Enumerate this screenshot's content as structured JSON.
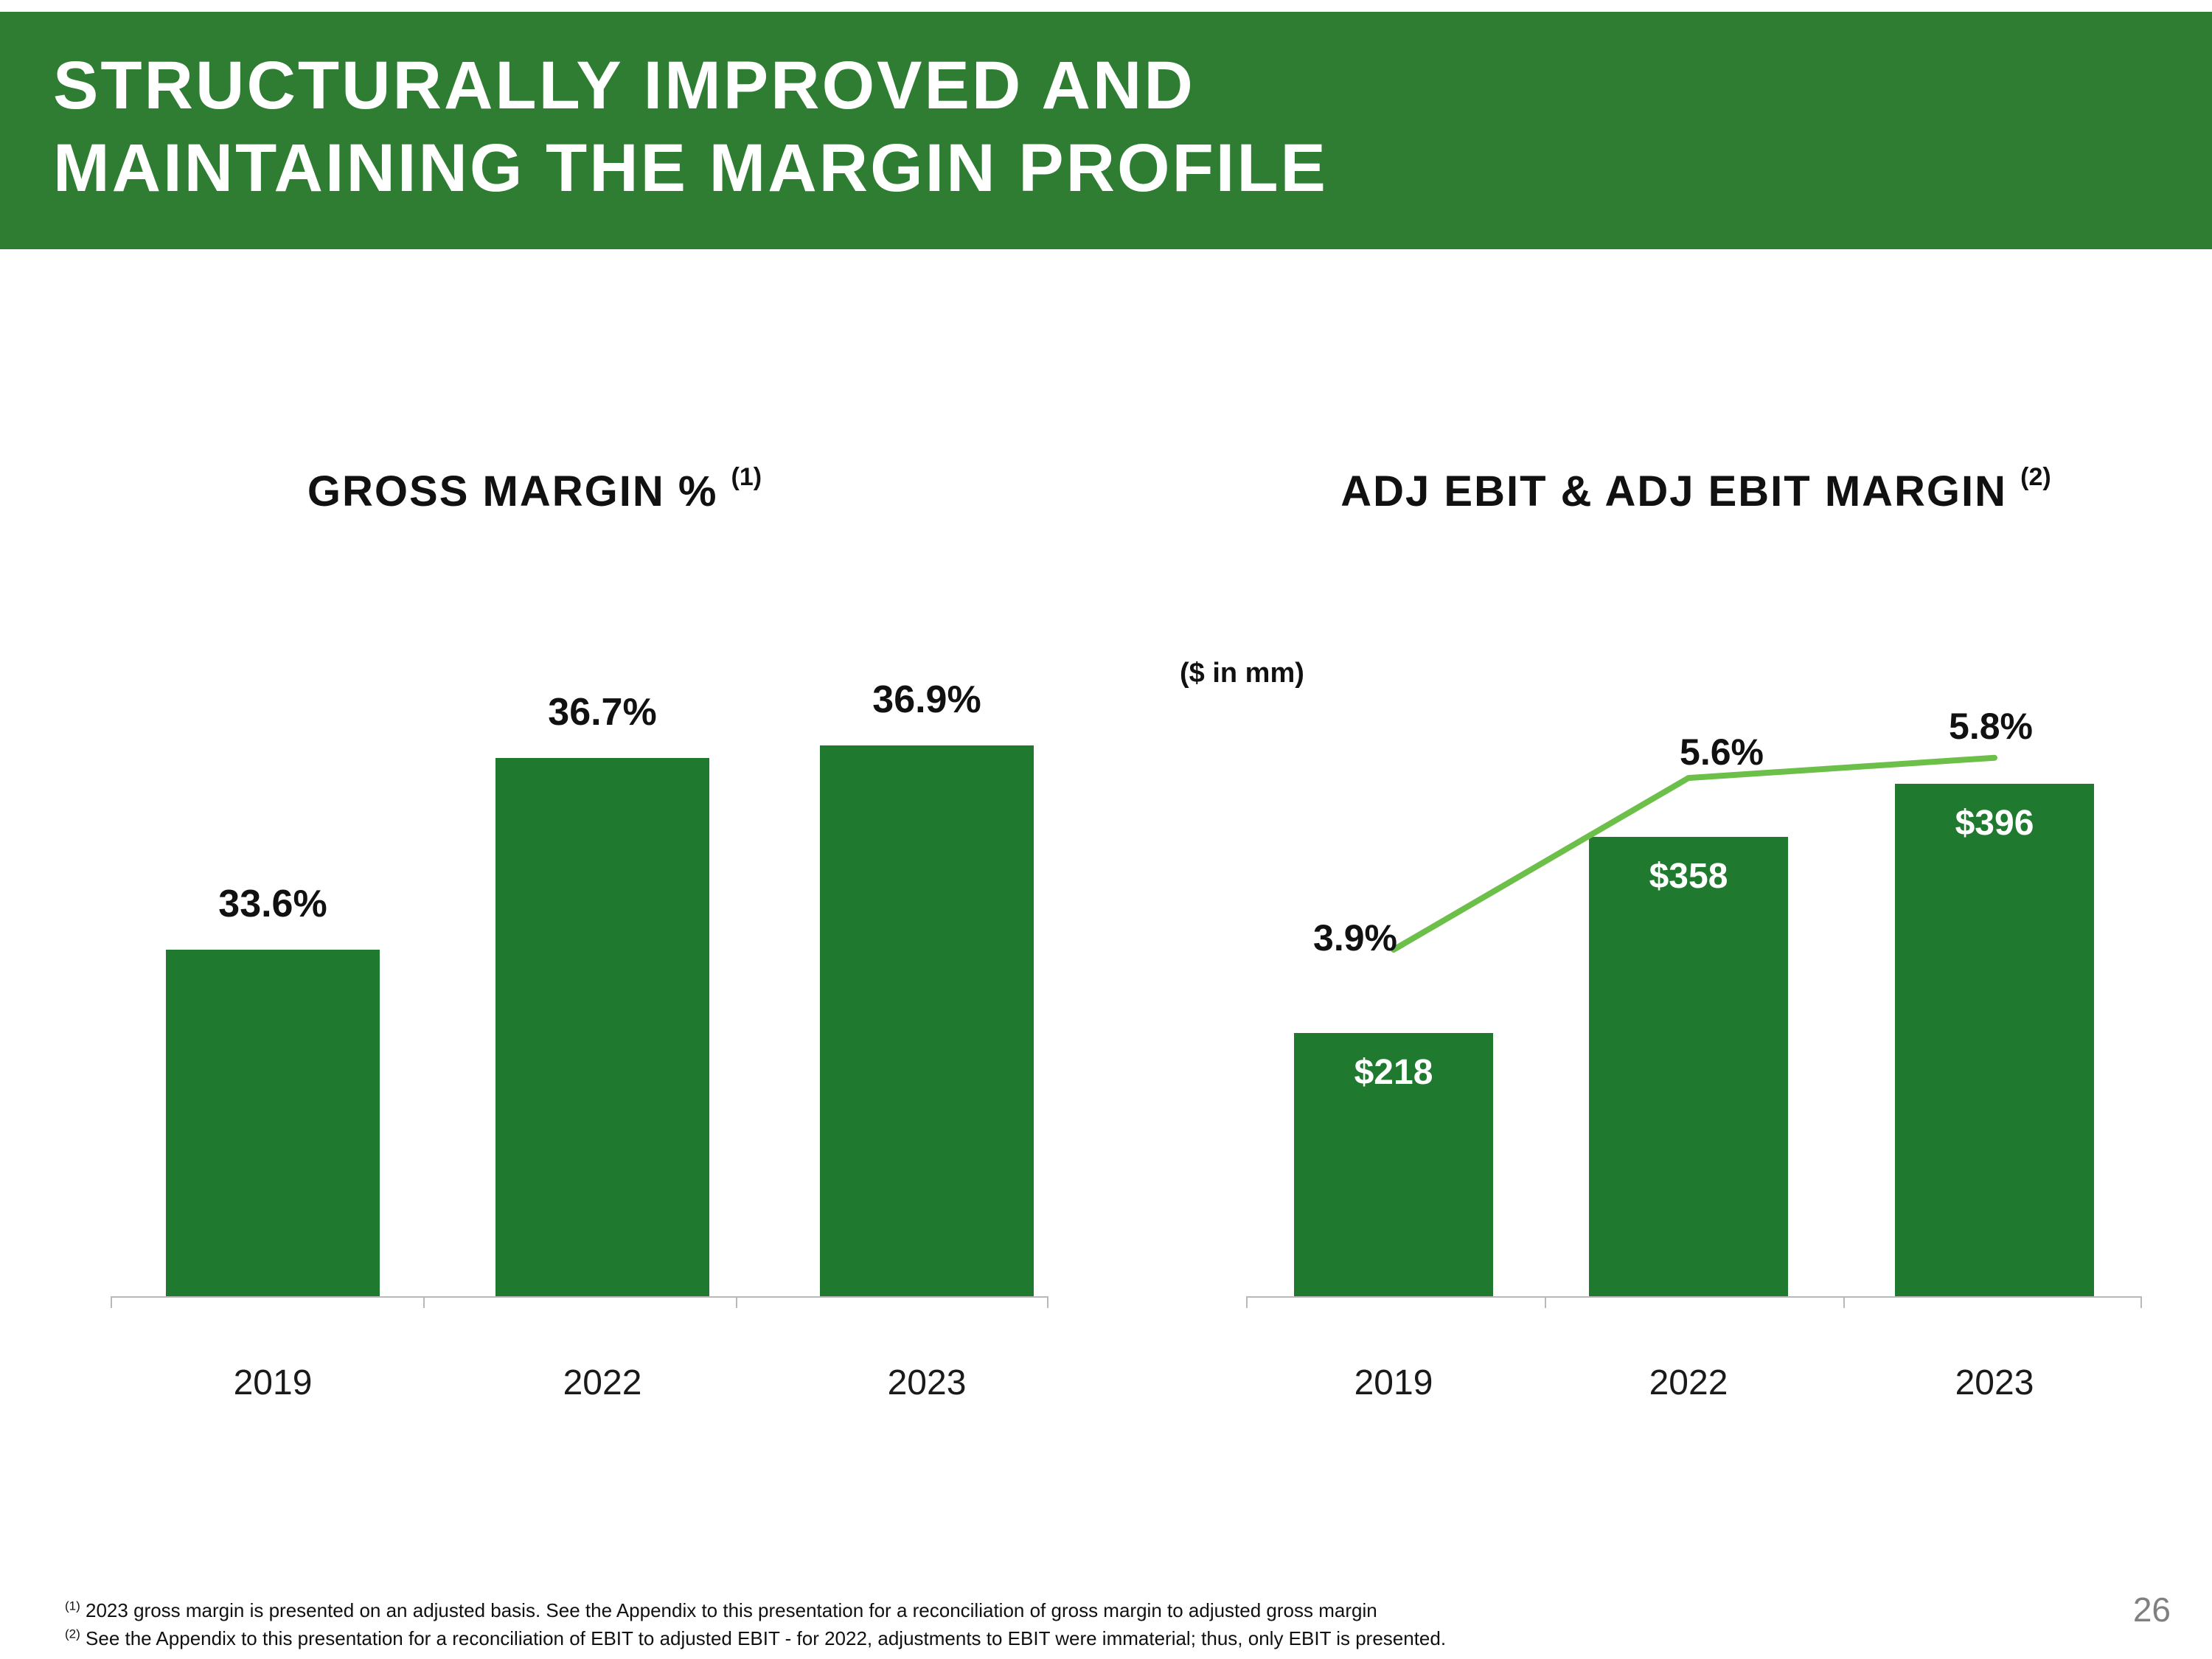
{
  "slide": {
    "title_line1": "STRUCTURALLY IMPROVED AND",
    "title_line2": "MAINTAINING THE MARGIN PROFILE",
    "page_number": "26",
    "footnotes": [
      {
        "marker": "(1)",
        "text": "2023 gross margin is presented on an adjusted basis.  See the Appendix to this presentation for a reconciliation of gross margin to adjusted gross margin"
      },
      {
        "marker": "(2)",
        "text": "See the Appendix to this presentation for a reconciliation of EBIT to adjusted EBIT - for 2022, adjustments to EBIT were immaterial; thus, only EBIT is presented."
      }
    ]
  },
  "colors": {
    "header_green": "#2E7D33",
    "bar_green": "#1F7A2F",
    "line_green": "#6CC04A",
    "axis_gray": "#b9b9b9",
    "page_number_gray": "#808080"
  },
  "chart_data": [
    {
      "type": "bar",
      "title": "GROSS MARGIN %",
      "title_note": "(1)",
      "categories": [
        "2019",
        "2022",
        "2023"
      ],
      "values": [
        33.6,
        36.7,
        36.9
      ],
      "value_labels": [
        "33.6%",
        "36.7%",
        "36.9%"
      ],
      "ylabel": "",
      "unit": "%",
      "value_axis_visible": false,
      "grid": false,
      "legend": "none"
    },
    {
      "type": "bar+line",
      "title": "ADJ EBIT & ADJ EBIT MARGIN",
      "title_note": "(2)",
      "subtitle": "($ in mm)",
      "categories": [
        "2019",
        "2022",
        "2023"
      ],
      "series": [
        {
          "name": "Adj EBIT ($ in mm)",
          "type": "bar",
          "values": [
            218,
            358,
            396
          ],
          "labels": [
            "$218",
            "$358",
            "$396"
          ]
        },
        {
          "name": "Adj EBIT Margin (%)",
          "type": "line",
          "values": [
            3.9,
            5.6,
            5.8
          ],
          "labels": [
            "3.9%",
            "5.6%",
            "5.8%"
          ]
        }
      ],
      "value_axis_visible": false,
      "grid": false,
      "legend": "none"
    }
  ]
}
